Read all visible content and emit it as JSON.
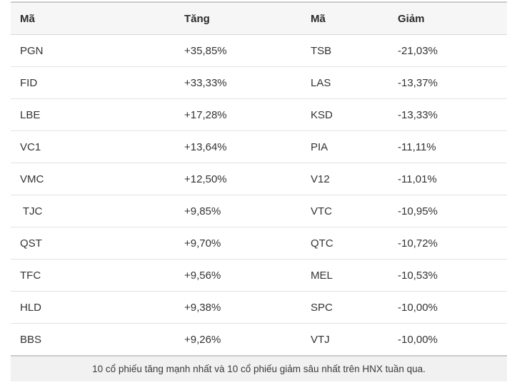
{
  "chart_data": {
    "type": "table",
    "columns": [
      "Mã",
      "Tăng",
      "Mã",
      "Giảm"
    ],
    "rows": [
      [
        "PGN",
        "+35,85%",
        "TSB",
        "-21,03%"
      ],
      [
        "FID",
        "+33,33%",
        "LAS",
        "-13,37%"
      ],
      [
        "LBE",
        "+17,28%",
        "KSD",
        "-13,33%"
      ],
      [
        "VC1",
        "+13,64%",
        "PIA",
        "-11,11%"
      ],
      [
        "VMC",
        "+12,50%",
        "V12",
        "-11,01%"
      ],
      [
        " TJC",
        "+9,85%",
        "VTC",
        "-10,95%"
      ],
      [
        "QST",
        "+9,70%",
        "QTC",
        "-10,72%"
      ],
      [
        "TFC",
        "+9,56%",
        "MEL",
        "-10,53%"
      ],
      [
        "HLD",
        "+9,38%",
        "SPC",
        "-10,00%"
      ],
      [
        "BBS",
        "+9,26%",
        "VTJ",
        "-10,00%"
      ]
    ],
    "series": [
      {
        "name": "Tăng",
        "categories": [
          "PGN",
          "FID",
          "LBE",
          "VC1",
          "VMC",
          "TJC",
          "QST",
          "TFC",
          "HLD",
          "BBS"
        ],
        "values": [
          35.85,
          33.33,
          17.28,
          13.64,
          12.5,
          9.85,
          9.7,
          9.56,
          9.38,
          9.26
        ]
      },
      {
        "name": "Giảm",
        "categories": [
          "TSB",
          "LAS",
          "KSD",
          "PIA",
          "V12",
          "VTC",
          "QTC",
          "MEL",
          "SPC",
          "VTJ"
        ],
        "values": [
          -21.03,
          -13.37,
          -13.33,
          -11.11,
          -11.01,
          -10.95,
          -10.72,
          -10.53,
          -10.0,
          -10.0
        ]
      }
    ],
    "caption": "10 cổ phiếu tăng mạnh nhất và 10 cổ phiếu giảm sâu nhất trên HNX tuần qua.",
    "colors": {
      "header_background": "#f6f6f6",
      "caption_background": "#f1f1f1",
      "strong_border": "#cbcbcb",
      "row_border": "#e2e2e2",
      "text": "#333333"
    }
  }
}
